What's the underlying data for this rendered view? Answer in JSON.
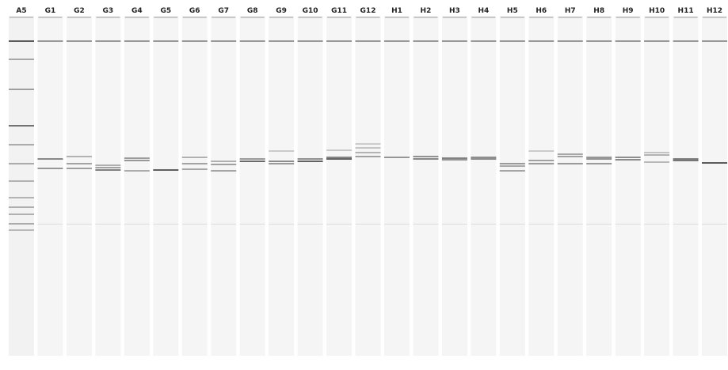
{
  "lanes": [
    "A5",
    "G1",
    "G2",
    "G3",
    "G4",
    "G5",
    "G6",
    "G7",
    "G8",
    "G9",
    "G10",
    "G11",
    "G12",
    "H1",
    "H2",
    "H3",
    "H4",
    "H5",
    "H6",
    "H7",
    "H8",
    "H9",
    "H10",
    "H11",
    "H12"
  ]
}
